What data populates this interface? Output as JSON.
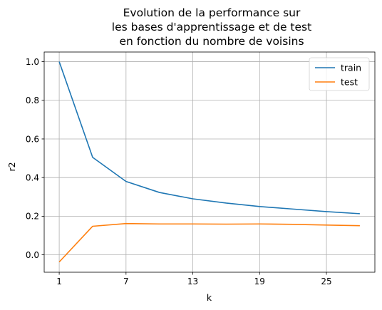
{
  "chart_data": {
    "type": "line",
    "title": [
      "Evolution de la performance sur",
      "les bases d'apprentissage et de test",
      "en fonction du nombre de voisins"
    ],
    "xlabel": "k",
    "ylabel": "r2",
    "x": [
      1,
      4,
      7,
      10,
      13,
      16,
      19,
      22,
      25,
      28
    ],
    "xticks": [
      1,
      7,
      13,
      19,
      25
    ],
    "yticks": [
      0.0,
      0.2,
      0.4,
      0.6,
      0.8,
      1.0
    ],
    "xlim": [
      -0.35,
      29.35
    ],
    "ylim": [
      -0.09,
      1.05
    ],
    "grid": true,
    "legend_position": "top-right",
    "series": [
      {
        "name": "train",
        "color": "#1f77b4",
        "values": [
          1.0,
          0.505,
          0.38,
          0.323,
          0.29,
          0.268,
          0.25,
          0.237,
          0.224,
          0.213
        ]
      },
      {
        "name": "test",
        "color": "#ff7f0e",
        "values": [
          -0.037,
          0.148,
          0.162,
          0.16,
          0.16,
          0.159,
          0.16,
          0.158,
          0.154,
          0.151
        ]
      }
    ]
  }
}
